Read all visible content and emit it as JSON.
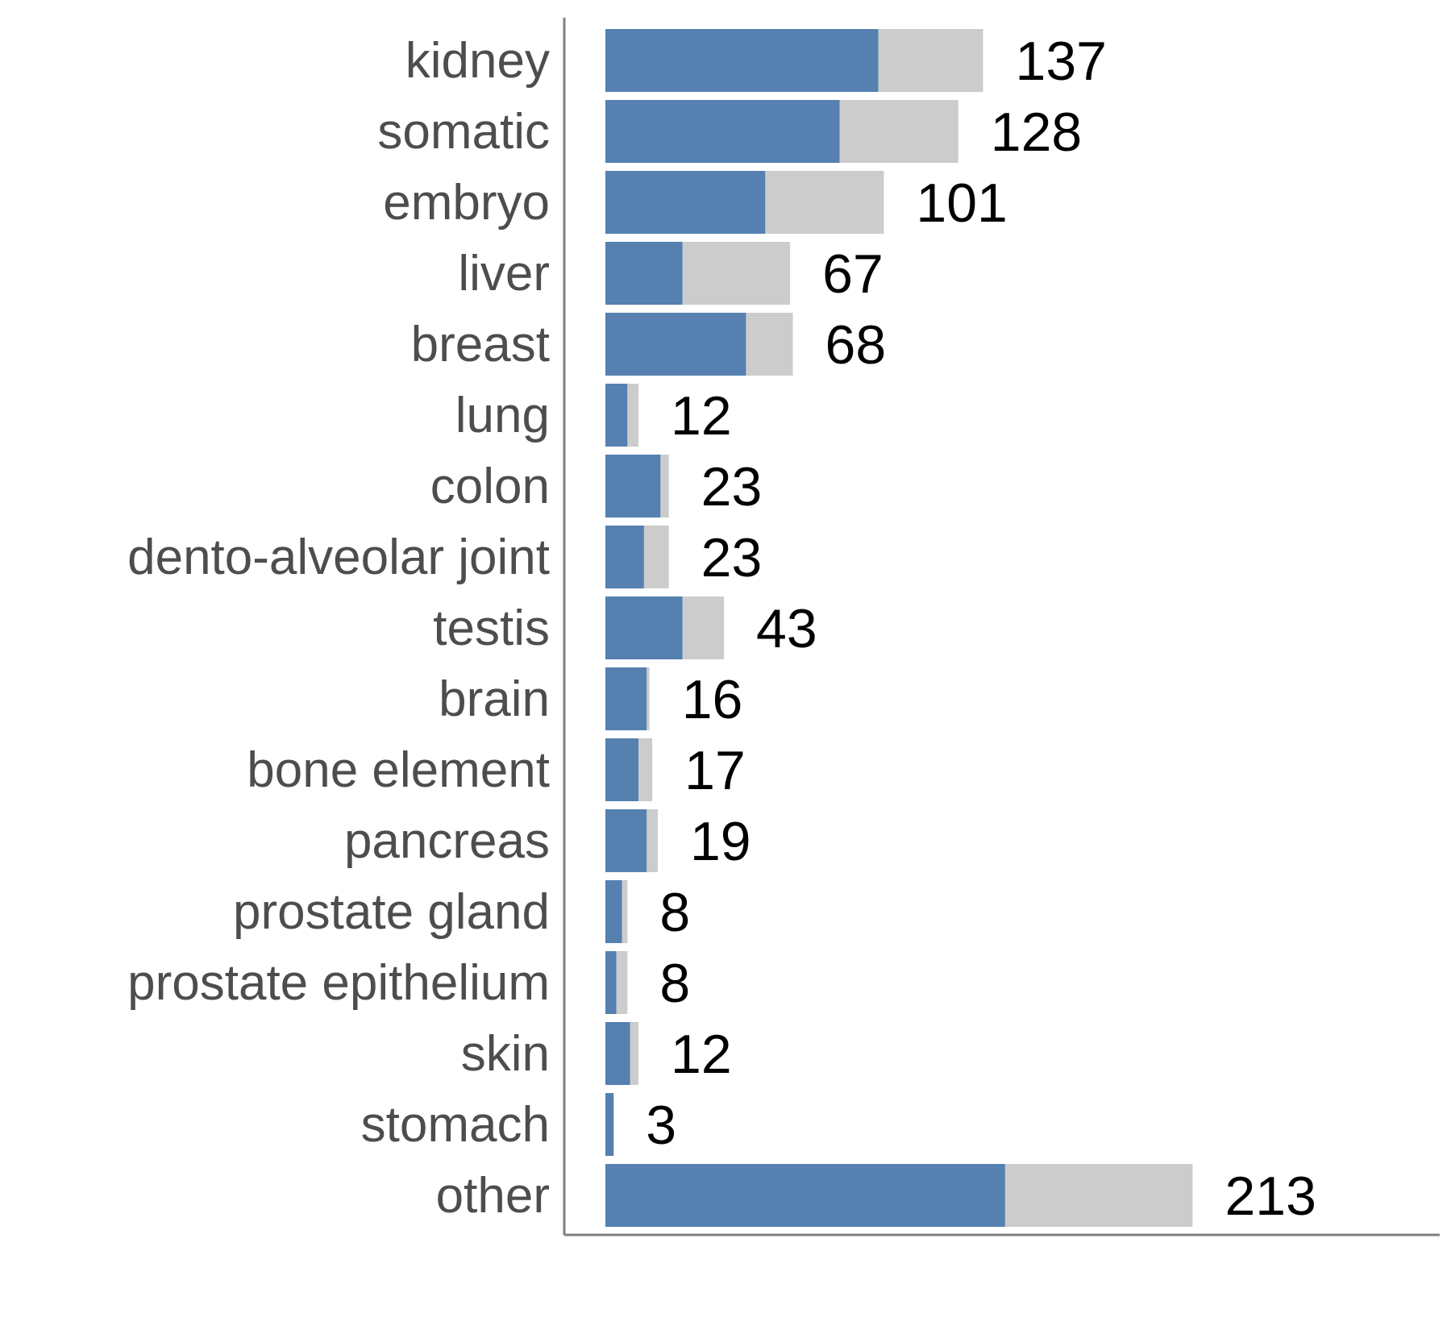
{
  "chart_data": {
    "type": "bar",
    "orientation": "horizontal",
    "stacked": true,
    "categories": [
      "kidney",
      "somatic",
      "embryo",
      "liver",
      "breast",
      "lung",
      "colon",
      "dento-alveolar joint",
      "testis",
      "brain",
      "bone element",
      "pancreas",
      "prostate gland",
      "prostate epithelium",
      "skin",
      "stomach",
      "other"
    ],
    "series": [
      {
        "values": [
          99,
          85,
          58,
          28,
          51,
          8,
          20,
          14,
          28,
          15,
          12,
          15,
          6,
          4,
          9,
          3,
          145
        ]
      },
      {
        "values": [
          38,
          43,
          43,
          39,
          17,
          4,
          3,
          9,
          15,
          1,
          5,
          4,
          2,
          4,
          3,
          0,
          68
        ]
      }
    ],
    "totals": [
      "137",
      "128",
      "101",
      "67",
      "68",
      "12",
      "23",
      "23",
      "43",
      "16",
      "17",
      "19",
      "8",
      "8",
      "12",
      "3",
      "213"
    ],
    "colors": {
      "primary": "#5580b0",
      "secondary": "#cccccc",
      "axis": "#808080",
      "category_text": "#4d4d4d",
      "value_text": "#000000"
    },
    "title": "",
    "xlabel": "",
    "ylabel": "",
    "xlim": [
      0,
      250
    ],
    "grid": false,
    "legend": "none"
  }
}
